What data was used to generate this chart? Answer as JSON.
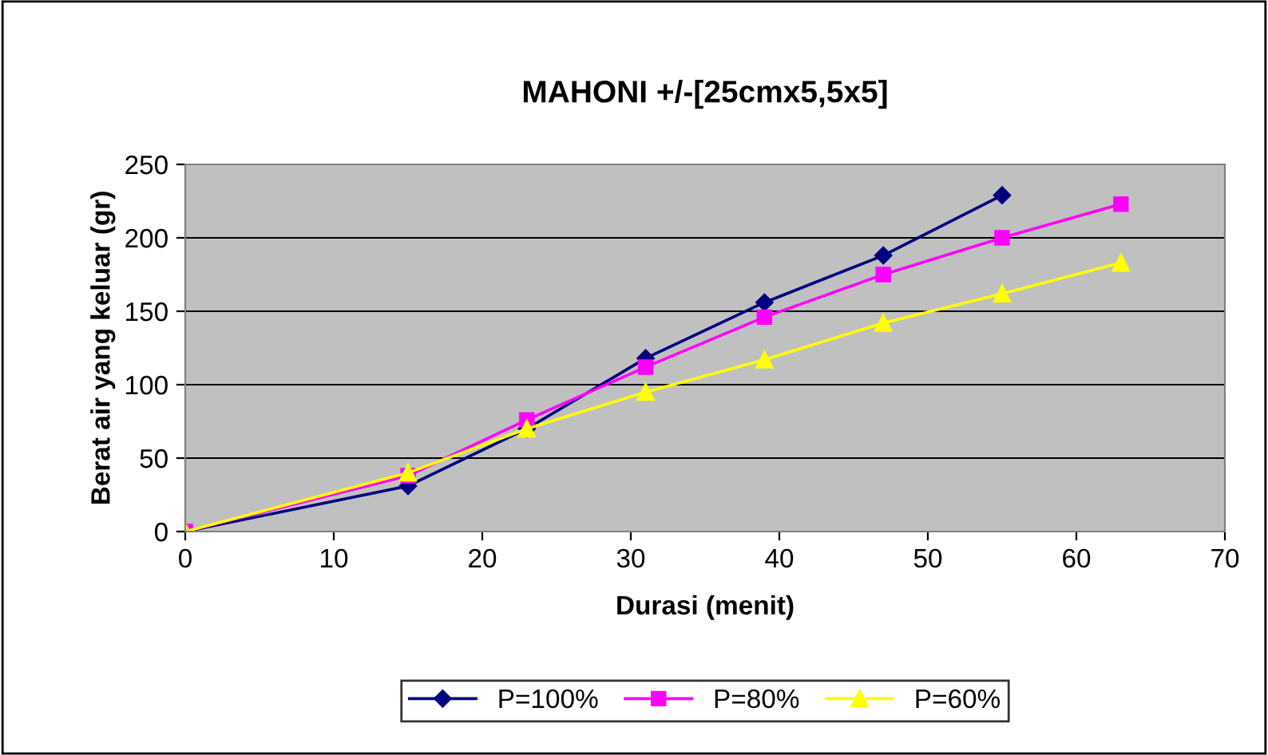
{
  "chart_data": {
    "type": "line",
    "title": "MAHONI +/-[25cmx5,5x5]",
    "xlabel": "Durasi (menit)",
    "ylabel": "Berat air yang keluar (gr)",
    "xlim": [
      0,
      70
    ],
    "xticks": [
      0,
      10,
      20,
      30,
      40,
      50,
      60,
      70
    ],
    "ylim": [
      0,
      250
    ],
    "yticks": [
      0,
      50,
      100,
      150,
      200,
      250
    ],
    "grid": "y",
    "legend": "bottom",
    "series": [
      {
        "name": "P=100%",
        "color": "#000080",
        "marker": "diamond",
        "x": [
          0,
          15,
          23,
          31,
          39,
          47,
          55
        ],
        "values": [
          0,
          31,
          70,
          118,
          156,
          188,
          229
        ]
      },
      {
        "name": "P=80%",
        "color": "#ff00ff",
        "marker": "square",
        "x": [
          0,
          15,
          23,
          31,
          39,
          47,
          55,
          63
        ],
        "values": [
          0,
          38,
          76,
          112,
          146,
          175,
          200,
          223
        ]
      },
      {
        "name": "P=60%",
        "color": "#ffff00",
        "marker": "triangle",
        "x": [
          0,
          15,
          23,
          31,
          39,
          47,
          55,
          63
        ],
        "values": [
          0,
          40,
          70,
          95,
          117,
          142,
          162,
          183
        ]
      }
    ]
  }
}
